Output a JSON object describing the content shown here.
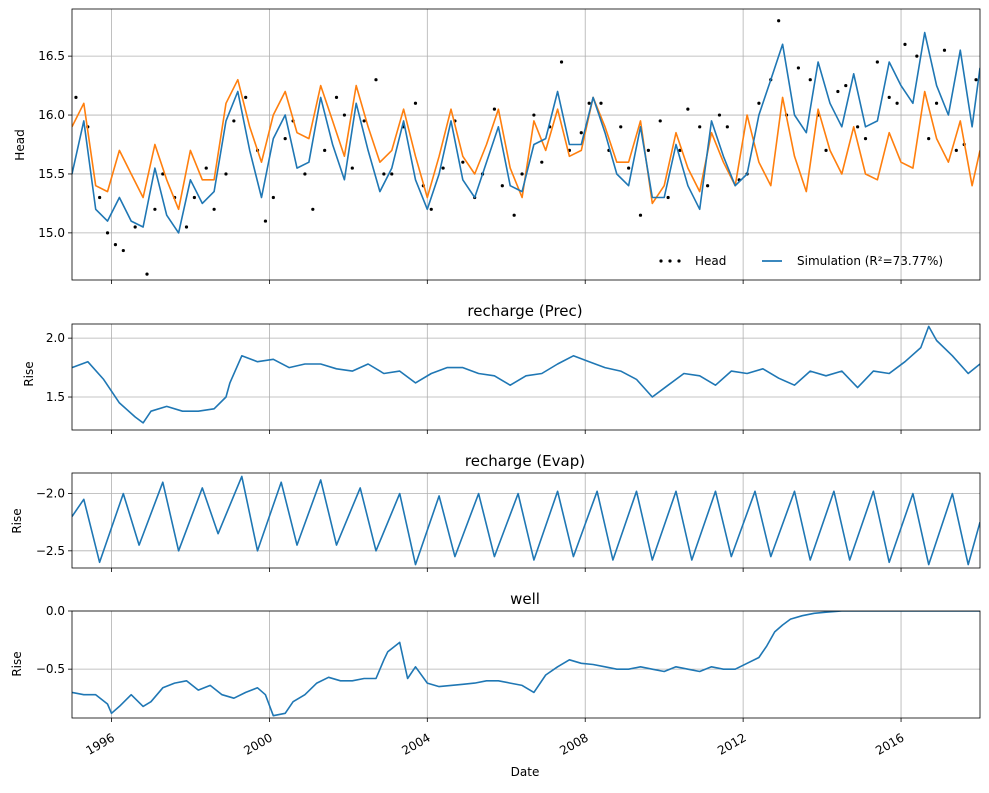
{
  "figure": {
    "xlabel": "Date"
  },
  "chart_data": [
    {
      "type": "line",
      "id": "head",
      "title": "",
      "ylabel": "Head",
      "xlim": [
        1995.0,
        2018.0
      ],
      "ylim": [
        14.6,
        16.9
      ],
      "yticks": [
        15.0,
        15.5,
        16.0,
        16.5
      ],
      "ytick_labels": [
        "15.0",
        "15.5",
        "16.0",
        "16.5"
      ],
      "grid": true,
      "legend": {
        "placement": "lower-right",
        "entries": [
          {
            "label": "Head",
            "style": "dots",
            "color": "#000000"
          },
          {
            "label": "Simulation (R²=73.77%)",
            "style": "line",
            "color": "#1f77b4"
          }
        ]
      },
      "series": [
        {
          "name": "Head",
          "style": "dots",
          "color": "#000000",
          "x": [
            1995.1,
            1995.4,
            1995.7,
            1995.9,
            1996.1,
            1996.3,
            1996.6,
            1996.9,
            1997.1,
            1997.3,
            1997.6,
            1997.9,
            1998.1,
            1998.4,
            1998.6,
            1998.9,
            1999.1,
            1999.4,
            1999.7,
            1999.9,
            2000.1,
            2000.4,
            2000.6,
            2000.9,
            2001.1,
            2001.4,
            2001.7,
            2001.9,
            2002.1,
            2002.4,
            2002.7,
            2002.9,
            2003.1,
            2003.4,
            2003.7,
            2003.9,
            2004.1,
            2004.4,
            2004.7,
            2004.9,
            2005.2,
            2005.4,
            2005.7,
            2005.9,
            2006.2,
            2006.4,
            2006.7,
            2006.9,
            2007.1,
            2007.4,
            2007.6,
            2007.9,
            2008.1,
            2008.4,
            2008.6,
            2008.9,
            2009.1,
            2009.4,
            2009.6,
            2009.9,
            2010.1,
            2010.4,
            2010.6,
            2010.9,
            2011.1,
            2011.4,
            2011.6,
            2011.9,
            2012.1,
            2012.4,
            2012.7,
            2012.9,
            2013.1,
            2013.4,
            2013.7,
            2013.9,
            2014.1,
            2014.4,
            2014.6,
            2014.9,
            2015.1,
            2015.4,
            2015.7,
            2015.9,
            2016.1,
            2016.4,
            2016.7,
            2016.9,
            2017.1,
            2017.4,
            2017.6,
            2017.9
          ],
          "y": [
            16.15,
            15.9,
            15.3,
            15.0,
            14.9,
            14.85,
            15.05,
            14.65,
            15.2,
            15.5,
            15.3,
            15.05,
            15.3,
            15.55,
            15.2,
            15.5,
            15.95,
            16.15,
            15.7,
            15.1,
            15.3,
            15.8,
            15.95,
            15.5,
            15.2,
            15.7,
            16.15,
            16.0,
            15.55,
            15.95,
            16.3,
            15.5,
            15.5,
            15.9,
            16.1,
            15.4,
            15.2,
            15.55,
            15.95,
            15.6,
            15.3,
            15.5,
            16.05,
            15.4,
            15.15,
            15.5,
            16.0,
            15.6,
            15.9,
            16.45,
            15.7,
            15.85,
            16.1,
            16.1,
            15.7,
            15.9,
            15.55,
            15.15,
            15.7,
            15.95,
            15.3,
            15.7,
            16.05,
            15.9,
            15.4,
            16.0,
            15.9,
            15.45,
            15.5,
            16.1,
            16.3,
            16.8,
            16.0,
            16.4,
            16.3,
            16.0,
            15.7,
            16.2,
            16.25,
            15.9,
            15.8,
            16.45,
            16.15,
            16.1,
            16.6,
            16.5,
            15.8,
            16.1,
            16.55,
            15.7,
            15.75,
            16.3
          ]
        },
        {
          "name": "",
          "style": "line",
          "color": "#ff7f0e",
          "x": [
            1995.0,
            1995.3,
            1995.6,
            1995.9,
            1996.2,
            1996.5,
            1996.8,
            1997.1,
            1997.4,
            1997.7,
            1998.0,
            1998.3,
            1998.6,
            1998.9,
            1999.2,
            1999.5,
            1999.8,
            2000.1,
            2000.4,
            2000.7,
            2001.0,
            2001.3,
            2001.6,
            2001.9,
            2002.2,
            2002.5,
            2002.8,
            2003.1,
            2003.4,
            2003.7,
            2004.0,
            2004.3,
            2004.6,
            2004.9,
            2005.2,
            2005.5,
            2005.8,
            2006.1,
            2006.4,
            2006.7,
            2007.0,
            2007.3,
            2007.6,
            2007.9,
            2008.2,
            2008.5,
            2008.8,
            2009.1,
            2009.4,
            2009.7,
            2010.0,
            2010.3,
            2010.6,
            2010.9,
            2011.2,
            2011.5,
            2011.8,
            2012.1,
            2012.4,
            2012.7,
            2013.0,
            2013.3,
            2013.6,
            2013.9,
            2014.2,
            2014.5,
            2014.8,
            2015.1,
            2015.4,
            2015.7,
            2016.0,
            2016.3,
            2016.6,
            2016.9,
            2017.2,
            2017.5,
            2017.8,
            2018.0
          ],
          "y": [
            15.9,
            16.1,
            15.4,
            15.35,
            15.7,
            15.5,
            15.3,
            15.75,
            15.45,
            15.2,
            15.7,
            15.45,
            15.45,
            16.1,
            16.3,
            15.9,
            15.6,
            16.0,
            16.2,
            15.85,
            15.8,
            16.25,
            15.95,
            15.65,
            16.25,
            15.9,
            15.6,
            15.7,
            16.05,
            15.65,
            15.3,
            15.65,
            16.05,
            15.65,
            15.5,
            15.75,
            16.05,
            15.55,
            15.3,
            15.95,
            15.7,
            16.05,
            15.65,
            15.7,
            16.15,
            15.9,
            15.6,
            15.6,
            15.95,
            15.25,
            15.4,
            15.85,
            15.55,
            15.35,
            15.85,
            15.6,
            15.4,
            16.0,
            15.6,
            15.4,
            16.15,
            15.65,
            15.35,
            16.05,
            15.7,
            15.5,
            15.9,
            15.5,
            15.45,
            15.85,
            15.6,
            15.55,
            16.2,
            15.8,
            15.6,
            15.95,
            15.4,
            15.7
          ]
        },
        {
          "name": "Simulation (R²=73.77%)",
          "style": "line",
          "color": "#1f77b4",
          "x": [
            1995.0,
            1995.3,
            1995.6,
            1995.9,
            1996.2,
            1996.5,
            1996.8,
            1997.1,
            1997.4,
            1997.7,
            1998.0,
            1998.3,
            1998.6,
            1998.9,
            1999.2,
            1999.5,
            1999.8,
            2000.1,
            2000.4,
            2000.7,
            2001.0,
            2001.3,
            2001.6,
            2001.9,
            2002.2,
            2002.5,
            2002.8,
            2003.1,
            2003.4,
            2003.7,
            2004.0,
            2004.3,
            2004.6,
            2004.9,
            2005.2,
            2005.5,
            2005.8,
            2006.1,
            2006.4,
            2006.7,
            2007.0,
            2007.3,
            2007.6,
            2007.9,
            2008.2,
            2008.5,
            2008.8,
            2009.1,
            2009.4,
            2009.7,
            2010.0,
            2010.3,
            2010.6,
            2010.9,
            2011.2,
            2011.5,
            2011.8,
            2012.1,
            2012.4,
            2012.7,
            2013.0,
            2013.3,
            2013.6,
            2013.9,
            2014.2,
            2014.5,
            2014.8,
            2015.1,
            2015.4,
            2015.7,
            2016.0,
            2016.3,
            2016.6,
            2016.9,
            2017.2,
            2017.5,
            2017.8,
            2018.0
          ],
          "y": [
            15.5,
            15.95,
            15.2,
            15.1,
            15.3,
            15.1,
            15.05,
            15.55,
            15.15,
            15.0,
            15.45,
            15.25,
            15.35,
            15.95,
            16.2,
            15.7,
            15.3,
            15.8,
            16.0,
            15.55,
            15.6,
            16.15,
            15.75,
            15.45,
            16.1,
            15.7,
            15.35,
            15.55,
            15.95,
            15.45,
            15.2,
            15.5,
            15.95,
            15.45,
            15.3,
            15.6,
            15.9,
            15.4,
            15.35,
            15.75,
            15.8,
            16.2,
            15.75,
            15.75,
            16.15,
            15.85,
            15.5,
            15.4,
            15.9,
            15.3,
            15.3,
            15.75,
            15.4,
            15.2,
            15.95,
            15.65,
            15.4,
            15.5,
            16.0,
            16.3,
            16.6,
            16.0,
            15.85,
            16.45,
            16.1,
            15.9,
            16.35,
            15.9,
            15.95,
            16.45,
            16.25,
            16.1,
            16.7,
            16.25,
            16.0,
            16.55,
            15.9,
            16.4
          ]
        }
      ]
    },
    {
      "type": "line",
      "id": "prec",
      "title": "recharge (Prec)",
      "ylabel": "Rise",
      "xlim": [
        1995.0,
        2018.0
      ],
      "ylim": [
        1.22,
        2.12
      ],
      "yticks": [
        1.5,
        2.0
      ],
      "ytick_labels": [
        "1.5",
        "2.0"
      ],
      "grid": true,
      "series": [
        {
          "name": "",
          "style": "line",
          "color": "#1f77b4",
          "x": [
            1995.0,
            1995.4,
            1995.8,
            1996.2,
            1996.6,
            1996.8,
            1997.0,
            1997.4,
            1997.8,
            1998.2,
            1998.6,
            1998.9,
            1999.0,
            1999.3,
            1999.7,
            2000.1,
            2000.5,
            2000.9,
            2001.3,
            2001.7,
            2002.1,
            2002.5,
            2002.9,
            2003.3,
            2003.7,
            2004.1,
            2004.5,
            2004.9,
            2005.3,
            2005.7,
            2006.1,
            2006.5,
            2006.9,
            2007.3,
            2007.7,
            2008.1,
            2008.5,
            2008.9,
            2009.3,
            2009.7,
            2010.1,
            2010.5,
            2010.9,
            2011.3,
            2011.7,
            2012.1,
            2012.5,
            2012.9,
            2013.3,
            2013.7,
            2014.1,
            2014.5,
            2014.9,
            2015.3,
            2015.7,
            2016.1,
            2016.5,
            2016.7,
            2016.9,
            2017.3,
            2017.7,
            2018.0
          ],
          "y": [
            1.75,
            1.8,
            1.65,
            1.45,
            1.33,
            1.28,
            1.38,
            1.42,
            1.38,
            1.38,
            1.4,
            1.5,
            1.62,
            1.85,
            1.8,
            1.82,
            1.75,
            1.78,
            1.78,
            1.74,
            1.72,
            1.78,
            1.7,
            1.72,
            1.62,
            1.7,
            1.75,
            1.75,
            1.7,
            1.68,
            1.6,
            1.68,
            1.7,
            1.78,
            1.85,
            1.8,
            1.75,
            1.72,
            1.65,
            1.5,
            1.6,
            1.7,
            1.68,
            1.6,
            1.72,
            1.7,
            1.74,
            1.66,
            1.6,
            1.72,
            1.68,
            1.72,
            1.58,
            1.72,
            1.7,
            1.8,
            1.92,
            2.1,
            1.98,
            1.85,
            1.7,
            1.78
          ]
        }
      ]
    },
    {
      "type": "line",
      "id": "evap",
      "title": "recharge (Evap)",
      "ylabel": "Rise",
      "xlim": [
        1995.0,
        2018.0
      ],
      "ylim": [
        -2.65,
        -1.82
      ],
      "yticks": [
        -2.5,
        -2.0
      ],
      "ytick_labels": [
        "−2.5",
        "−2.0"
      ],
      "grid": true,
      "series": [
        {
          "name": "",
          "style": "line",
          "color": "#1f77b4",
          "x": [
            1995.0,
            1995.3,
            1995.7,
            1996.3,
            1996.7,
            1997.3,
            1997.7,
            1998.3,
            1998.7,
            1999.3,
            1999.7,
            2000.3,
            2000.7,
            2001.3,
            2001.7,
            2002.3,
            2002.7,
            2003.3,
            2003.7,
            2004.3,
            2004.7,
            2005.3,
            2005.7,
            2006.3,
            2006.7,
            2007.3,
            2007.7,
            2008.3,
            2008.7,
            2009.3,
            2009.7,
            2010.3,
            2010.7,
            2011.3,
            2011.7,
            2012.3,
            2012.7,
            2013.3,
            2013.7,
            2014.3,
            2014.7,
            2015.3,
            2015.7,
            2016.3,
            2016.7,
            2017.3,
            2017.7,
            2018.0
          ],
          "y": [
            -2.2,
            -2.05,
            -2.6,
            -2.0,
            -2.45,
            -1.9,
            -2.5,
            -1.95,
            -2.35,
            -1.85,
            -2.5,
            -1.9,
            -2.45,
            -1.88,
            -2.45,
            -1.95,
            -2.5,
            -2.0,
            -2.62,
            -2.02,
            -2.55,
            -2.0,
            -2.55,
            -2.0,
            -2.58,
            -1.98,
            -2.55,
            -1.98,
            -2.58,
            -1.98,
            -2.58,
            -1.98,
            -2.58,
            -1.98,
            -2.55,
            -1.98,
            -2.55,
            -1.98,
            -2.58,
            -1.98,
            -2.58,
            -1.98,
            -2.6,
            -2.0,
            -2.62,
            -2.0,
            -2.62,
            -2.25
          ]
        }
      ]
    },
    {
      "type": "line",
      "id": "well",
      "title": "well",
      "ylabel": "Rise",
      "xlim": [
        1995.0,
        2018.0
      ],
      "ylim": [
        -0.92,
        0.0
      ],
      "yticks": [
        -0.5,
        0.0
      ],
      "ytick_labels": [
        "−0.5",
        "0.0"
      ],
      "xticks": [
        1996,
        2000,
        2004,
        2008,
        2012,
        2016
      ],
      "xtick_labels": [
        "1996",
        "2000",
        "2004",
        "2008",
        "2012",
        "2016"
      ],
      "grid": true,
      "series": [
        {
          "name": "",
          "style": "line",
          "color": "#1f77b4",
          "x": [
            1995.0,
            1995.3,
            1995.6,
            1995.9,
            1996.0,
            1996.2,
            1996.5,
            1996.8,
            1997.0,
            1997.3,
            1997.6,
            1997.9,
            1998.2,
            1998.5,
            1998.8,
            1999.1,
            1999.4,
            1999.7,
            1999.9,
            2000.1,
            2000.4,
            2000.6,
            2000.9,
            2001.2,
            2001.5,
            2001.8,
            2002.1,
            2002.4,
            2002.7,
            2002.9,
            2003.0,
            2003.3,
            2003.5,
            2003.7,
            2004.0,
            2004.3,
            2004.6,
            2004.9,
            2005.2,
            2005.5,
            2005.8,
            2006.1,
            2006.4,
            2006.7,
            2007.0,
            2007.3,
            2007.6,
            2007.9,
            2008.2,
            2008.5,
            2008.8,
            2009.1,
            2009.4,
            2009.7,
            2010.0,
            2010.3,
            2010.6,
            2010.9,
            2011.2,
            2011.5,
            2011.8,
            2012.1,
            2012.4,
            2012.6,
            2012.8,
            2013.0,
            2013.2,
            2013.5,
            2013.8,
            2014.1,
            2014.5,
            2015.0,
            2016.0,
            2017.0,
            2018.0
          ],
          "y": [
            -0.7,
            -0.72,
            -0.72,
            -0.8,
            -0.88,
            -0.82,
            -0.72,
            -0.82,
            -0.78,
            -0.66,
            -0.62,
            -0.6,
            -0.68,
            -0.64,
            -0.72,
            -0.75,
            -0.7,
            -0.66,
            -0.72,
            -0.9,
            -0.88,
            -0.78,
            -0.72,
            -0.62,
            -0.57,
            -0.6,
            -0.6,
            -0.58,
            -0.58,
            -0.42,
            -0.35,
            -0.27,
            -0.58,
            -0.48,
            -0.62,
            -0.65,
            -0.64,
            -0.63,
            -0.62,
            -0.6,
            -0.6,
            -0.62,
            -0.64,
            -0.7,
            -0.55,
            -0.48,
            -0.42,
            -0.45,
            -0.46,
            -0.48,
            -0.5,
            -0.5,
            -0.48,
            -0.5,
            -0.52,
            -0.48,
            -0.5,
            -0.52,
            -0.48,
            -0.5,
            -0.5,
            -0.45,
            -0.4,
            -0.3,
            -0.18,
            -0.12,
            -0.07,
            -0.04,
            -0.02,
            -0.01,
            0.0,
            0.0,
            0.0,
            0.0,
            0.0
          ]
        }
      ]
    }
  ]
}
